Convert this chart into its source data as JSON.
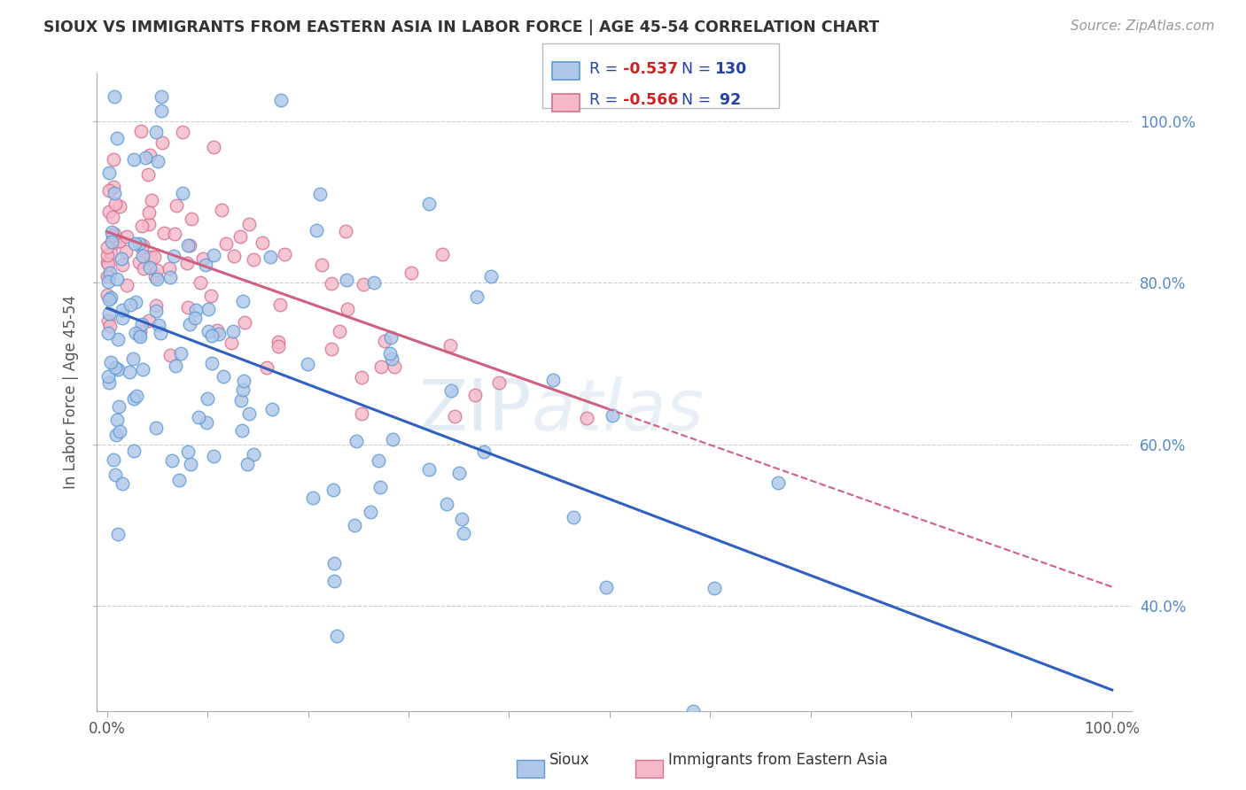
{
  "title": "SIOUX VS IMMIGRANTS FROM EASTERN ASIA IN LABOR FORCE | AGE 45-54 CORRELATION CHART",
  "source": "Source: ZipAtlas.com",
  "ylabel": "In Labor Force | Age 45-54",
  "sioux_color": "#aec6e8",
  "sioux_edge": "#5b9bd5",
  "ea_color": "#f4b8c8",
  "ea_edge": "#d47090",
  "trend_sioux_color": "#3060c0",
  "trend_ea_color": "#d06080",
  "watermark": "ZIPatlas",
  "sioux_R": -0.537,
  "sioux_N": 130,
  "ea_R": -0.566,
  "ea_N": 92,
  "background_color": "#ffffff",
  "grid_color": "#cccccc",
  "legend_text_color": "#2244aa",
  "legend_neg_color": "#cc2222",
  "legend_n_color": "#2244aa"
}
